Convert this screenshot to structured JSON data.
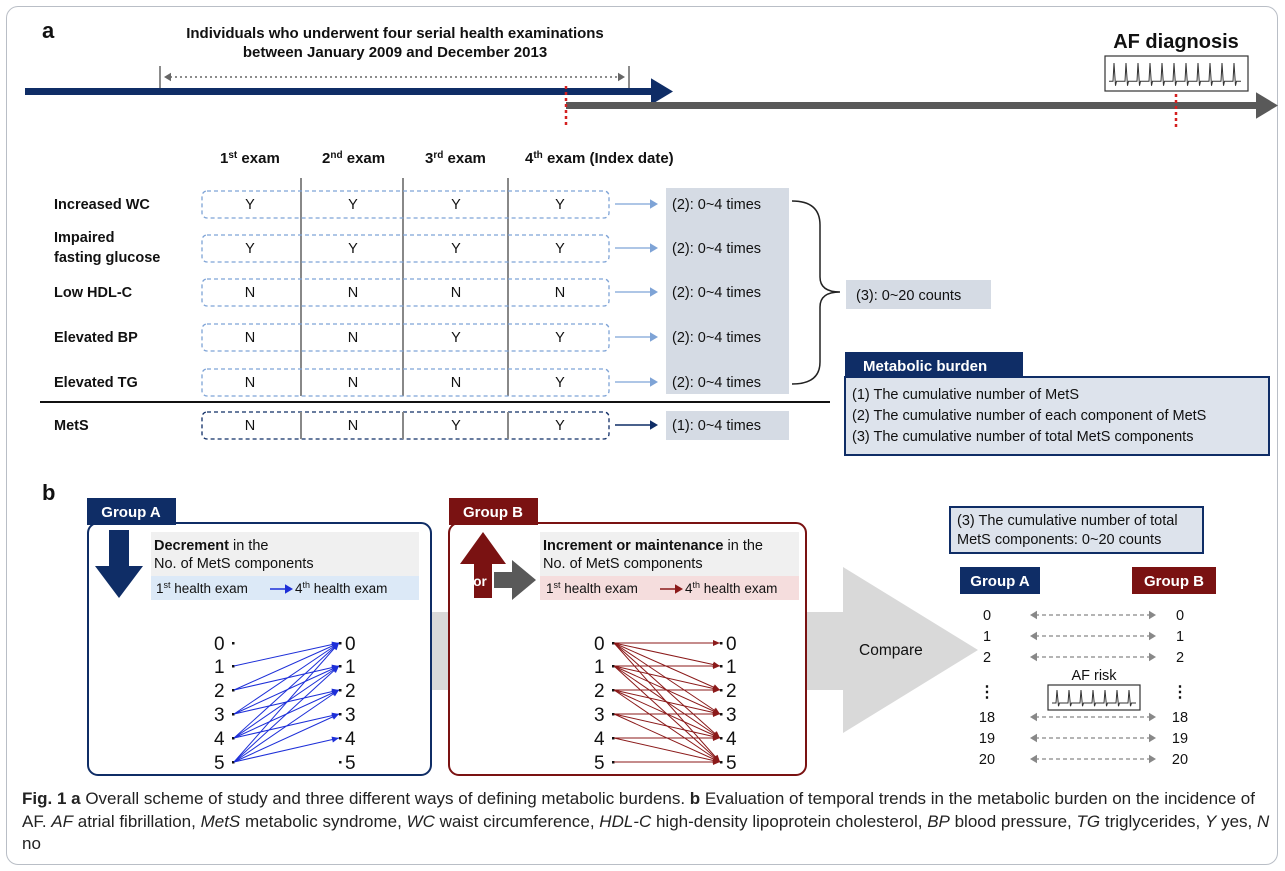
{
  "panel_a": {
    "label": "a",
    "period_title_line1": "Individuals who underwent four serial health examinations",
    "period_title_line2": "between January 2009 and December 2013",
    "af_diagnosis": "AF diagnosis",
    "exams": [
      {
        "ord": "1",
        "sup": "st",
        "rest": " exam"
      },
      {
        "ord": "2",
        "sup": "nd",
        "rest": " exam"
      },
      {
        "ord": "3",
        "sup": "rd",
        "rest": " exam"
      },
      {
        "ord": "4",
        "sup": "th",
        "rest": " exam (Index date)"
      }
    ],
    "rows": [
      {
        "label": [
          "Increased WC"
        ],
        "values": [
          "Y",
          "Y",
          "Y",
          "Y"
        ],
        "count": "(2): 0~4 times"
      },
      {
        "label": [
          "Impaired",
          "fasting glucose"
        ],
        "values": [
          "Y",
          "Y",
          "Y",
          "Y"
        ],
        "count": "(2): 0~4 times"
      },
      {
        "label": [
          "Low HDL-C"
        ],
        "values": [
          "N",
          "N",
          "N",
          "N"
        ],
        "count": "(2): 0~4 times"
      },
      {
        "label": [
          "Elevated BP"
        ],
        "values": [
          "N",
          "N",
          "Y",
          "Y"
        ],
        "count": "(2): 0~4 times"
      },
      {
        "label": [
          "Elevated TG"
        ],
        "values": [
          "N",
          "N",
          "N",
          "Y"
        ],
        "count": "(2): 0~4 times"
      }
    ],
    "mets_row": {
      "label": "MetS",
      "values": [
        "N",
        "N",
        "Y",
        "Y"
      ],
      "count": "(1): 0~4 times"
    },
    "total_count": "(3): 0~20 counts",
    "burden_title": "Metabolic burden",
    "burden_items": [
      "(1) The cumulative number of MetS",
      "(2) The cumulative number of each component of MetS",
      "(3) The cumulative number of total MetS components"
    ]
  },
  "panel_b": {
    "label": "b",
    "group_a": "Group A",
    "group_b": "Group B",
    "a_desc_bold": "Decrement",
    "a_desc_rest1": " in the",
    "a_desc_line2": "No. of MetS components",
    "b_desc_bold": "Increment or maintenance",
    "b_desc_rest1": " in the",
    "b_desc_line2": "No. of MetS components",
    "or_label": "or",
    "exam_first": "1",
    "exam_first_sup": "st",
    "exam_last": "4",
    "exam_last_sup": "th",
    "exam_word": " health exam",
    "numbers": [
      "0",
      "1",
      "2",
      "3",
      "4",
      "5"
    ],
    "compare": "Compare",
    "cumulative_line1": "(3) The cumulative number of total",
    "cumulative_line2": "MetS components: 0~20 counts",
    "comp_rows": [
      "0",
      "1",
      "2",
      "18",
      "19",
      "20"
    ],
    "ellipsis": "⋮",
    "af_risk": "AF risk"
  },
  "caption": {
    "a_label": "Fig. 1",
    "a_bold": "a",
    "a_text": " Overall scheme of study and three different ways of defining metabolic burdens. ",
    "b_bold": "b",
    "b_text": " Evaluation of temporal trends in the metabolic burden on the incidence of AF. ",
    "abbrevs": [
      {
        "abbr": "AF",
        "def": " atrial fibrillation, "
      },
      {
        "abbr": "MetS",
        "def": " metabolic syndrome, "
      },
      {
        "abbr": "WC",
        "def": " waist circumference, "
      },
      {
        "abbr": "HDL-C",
        "def": " high-density lipoprotein cholesterol, "
      },
      {
        "abbr": "BP",
        "def": " blood pressure, "
      },
      {
        "abbr": "TG",
        "def": " triglycerides, "
      },
      {
        "abbr": "Y",
        "def": " yes, "
      },
      {
        "abbr": "N",
        "def": " no"
      }
    ]
  },
  "colors": {
    "navy": "#0f2d66",
    "maroon": "#7a1212",
    "gray_arrow": "#595959",
    "count_box": "#d5dbe4",
    "dash_blue": "#7ea3d6",
    "line_blue": "#1d2fd8",
    "line_red": "#8b1a1a",
    "red_dot": "#d42020"
  }
}
